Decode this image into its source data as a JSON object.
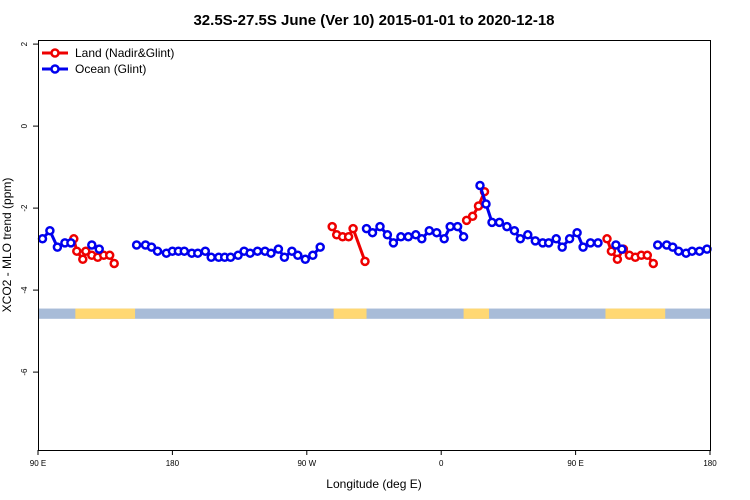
{
  "chart_data": {
    "type": "line",
    "title": "32.5S-27.5S June (Ver 10)   2015-01-01 to 2020-12-18",
    "xlabel": "Longitude (deg E)",
    "ylabel": "XCO2 - MLO trend (ppm)",
    "x_ticks": [
      {
        "value": 90,
        "label": "90 E"
      },
      {
        "value": 180,
        "label": "180"
      },
      {
        "value": 270,
        "label": "90 W"
      },
      {
        "value": 360,
        "label": "0"
      },
      {
        "value": 450,
        "label": "90 E"
      },
      {
        "value": 540,
        "label": "180"
      }
    ],
    "y_ticks": [
      {
        "value": 2,
        "label": "2"
      },
      {
        "value": 0,
        "label": "0"
      },
      {
        "value": -2,
        "label": "-2"
      },
      {
        "value": -4,
        "label": "-4"
      },
      {
        "value": -6,
        "label": "-6"
      }
    ],
    "xlim": [
      90,
      540
    ],
    "ylim": [
      -7.9,
      2.1
    ],
    "grid": false,
    "legend_position": "top-left",
    "land_mask_band": {
      "y_top": -4.45,
      "y_bottom": -4.7,
      "ocean_color": "#a8bcd8",
      "land_color": "#ffd873",
      "land_ranges": [
        [
          115,
          155
        ],
        [
          288,
          310
        ],
        [
          375,
          392
        ],
        [
          470,
          510
        ]
      ]
    },
    "series": [
      {
        "name": "Land (Nadir&Glint)",
        "color": "#ee0000",
        "segments": [
          [
            [
              114,
              -2.75
            ],
            [
              116,
              -3.05
            ],
            [
              120,
              -3.25
            ],
            [
              122,
              -3.05
            ],
            [
              126,
              -3.15
            ],
            [
              130,
              -3.2
            ],
            [
              134,
              -3.15
            ],
            [
              138,
              -3.15
            ],
            [
              141,
              -3.35
            ]
          ],
          [
            [
              287,
              -2.45
            ],
            [
              290,
              -2.65
            ],
            [
              294,
              -2.7
            ],
            [
              298,
              -2.7
            ],
            [
              301,
              -2.5
            ],
            [
              309,
              -3.3
            ]
          ],
          [
            [
              377,
              -2.3
            ],
            [
              381,
              -2.2
            ],
            [
              385,
              -1.95
            ],
            [
              389,
              -1.6
            ]
          ],
          [
            [
              471,
              -2.75
            ],
            [
              474,
              -3.05
            ],
            [
              478,
              -3.25
            ],
            [
              482,
              -3.0
            ],
            [
              486,
              -3.15
            ],
            [
              490,
              -3.2
            ],
            [
              494,
              -3.15
            ],
            [
              498,
              -3.15
            ],
            [
              502,
              -3.35
            ]
          ]
        ]
      },
      {
        "name": "Ocean (Glint)",
        "color": "#0000ee",
        "segments": [
          [
            [
              93,
              -2.75
            ],
            [
              98,
              -2.55
            ],
            [
              103,
              -2.95
            ],
            [
              108,
              -2.85
            ],
            [
              112,
              -2.85
            ]
          ],
          [
            [
              126,
              -2.9
            ],
            [
              131,
              -3.0
            ]
          ],
          [
            [
              156,
              -2.9
            ],
            [
              162,
              -2.9
            ],
            [
              166,
              -2.95
            ],
            [
              170,
              -3.05
            ],
            [
              176,
              -3.1
            ],
            [
              180,
              -3.05
            ],
            [
              184,
              -3.05
            ],
            [
              188,
              -3.05
            ],
            [
              193,
              -3.1
            ],
            [
              197,
              -3.1
            ],
            [
              202,
              -3.05
            ],
            [
              206,
              -3.2
            ],
            [
              211,
              -3.2
            ],
            [
              215,
              -3.2
            ],
            [
              219,
              -3.2
            ],
            [
              224,
              -3.15
            ],
            [
              228,
              -3.05
            ],
            [
              232,
              -3.1
            ],
            [
              237,
              -3.05
            ],
            [
              242,
              -3.05
            ],
            [
              246,
              -3.1
            ],
            [
              251,
              -3.0
            ],
            [
              255,
              -3.2
            ],
            [
              260,
              -3.05
            ],
            [
              264,
              -3.15
            ],
            [
              269,
              -3.25
            ],
            [
              274,
              -3.15
            ],
            [
              279,
              -2.95
            ]
          ],
          [
            [
              310,
              -2.5
            ],
            [
              314,
              -2.6
            ],
            [
              319,
              -2.45
            ],
            [
              324,
              -2.65
            ],
            [
              328,
              -2.85
            ],
            [
              333,
              -2.7
            ],
            [
              338,
              -2.7
            ],
            [
              343,
              -2.65
            ],
            [
              347,
              -2.75
            ],
            [
              352,
              -2.55
            ],
            [
              357,
              -2.6
            ],
            [
              362,
              -2.75
            ],
            [
              366,
              -2.45
            ],
            [
              371,
              -2.45
            ],
            [
              375,
              -2.7
            ]
          ],
          [
            [
              386,
              -1.45
            ],
            [
              390,
              -1.9
            ],
            [
              394,
              -2.35
            ],
            [
              399,
              -2.35
            ],
            [
              404,
              -2.45
            ],
            [
              409,
              -2.55
            ],
            [
              413,
              -2.75
            ],
            [
              418,
              -2.65
            ],
            [
              423,
              -2.8
            ],
            [
              428,
              -2.85
            ],
            [
              432,
              -2.85
            ],
            [
              437,
              -2.75
            ],
            [
              441,
              -2.95
            ],
            [
              446,
              -2.75
            ],
            [
              451,
              -2.6
            ],
            [
              455,
              -2.95
            ],
            [
              460,
              -2.85
            ],
            [
              465,
              -2.85
            ]
          ],
          [
            [
              477,
              -2.9
            ],
            [
              481,
              -3.0
            ]
          ],
          [
            [
              505,
              -2.9
            ],
            [
              511,
              -2.9
            ],
            [
              515,
              -2.95
            ],
            [
              519,
              -3.05
            ],
            [
              524,
              -3.1
            ],
            [
              528,
              -3.05
            ],
            [
              533,
              -3.05
            ],
            [
              538,
              -3.0
            ]
          ]
        ]
      }
    ]
  }
}
